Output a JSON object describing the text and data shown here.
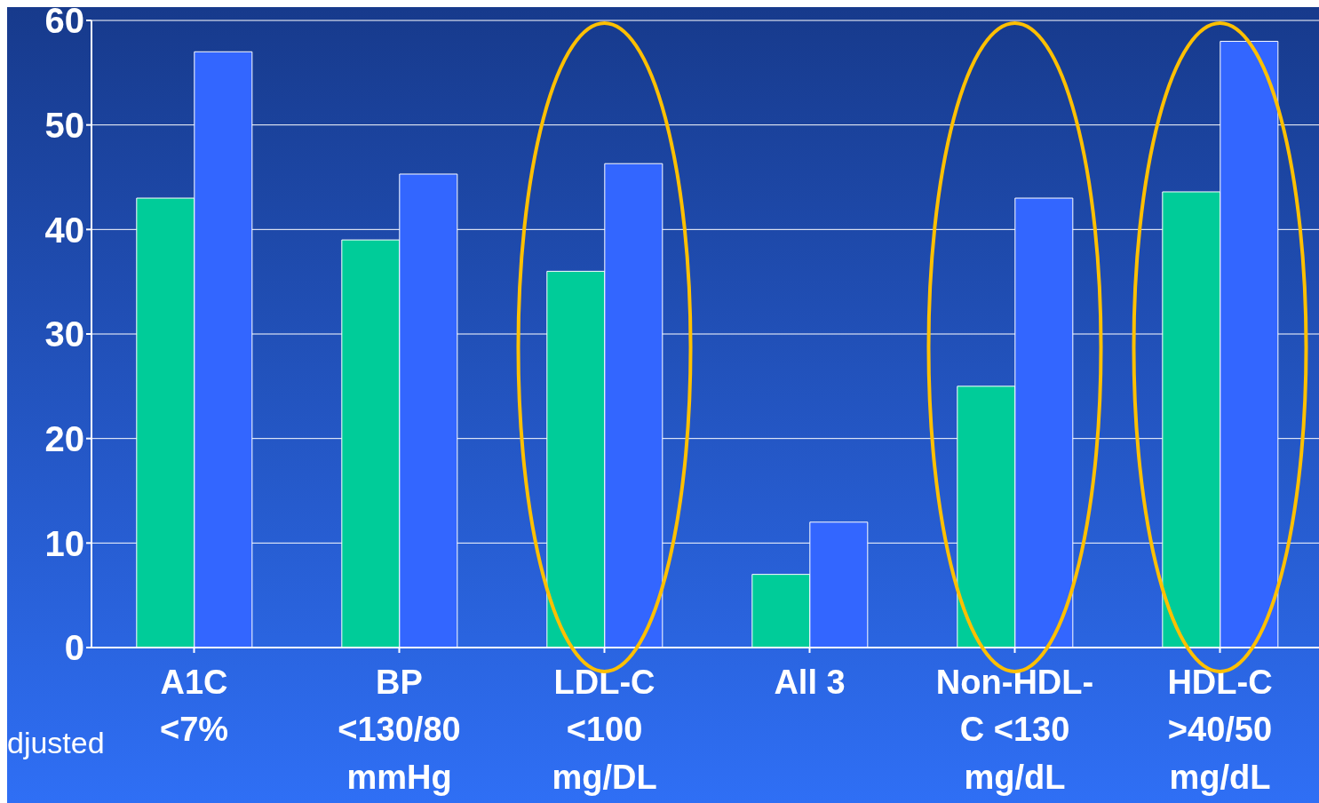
{
  "chart_data": {
    "type": "bar",
    "categories": [
      "A1C\n<7%",
      "BP\n<130/80\nmmHg",
      "LDL-C\n<100\nmg/DL",
      "All 3",
      "Non-HDL-\nC <130\nmg/dL",
      "HDL-C\n>40/50\nmg/dL"
    ],
    "series": [
      {
        "color": "#00cc99",
        "values": [
          43,
          39,
          36,
          7,
          25,
          43.6
        ]
      },
      {
        "color": "#3366ff",
        "values": [
          57,
          45.3,
          46.3,
          12,
          43,
          58
        ]
      }
    ],
    "ylim": [
      0,
      60
    ],
    "yticks": [
      0,
      10,
      20,
      30,
      40,
      50,
      60
    ],
    "grid": "y",
    "annotations": [
      "djusted"
    ]
  }
}
